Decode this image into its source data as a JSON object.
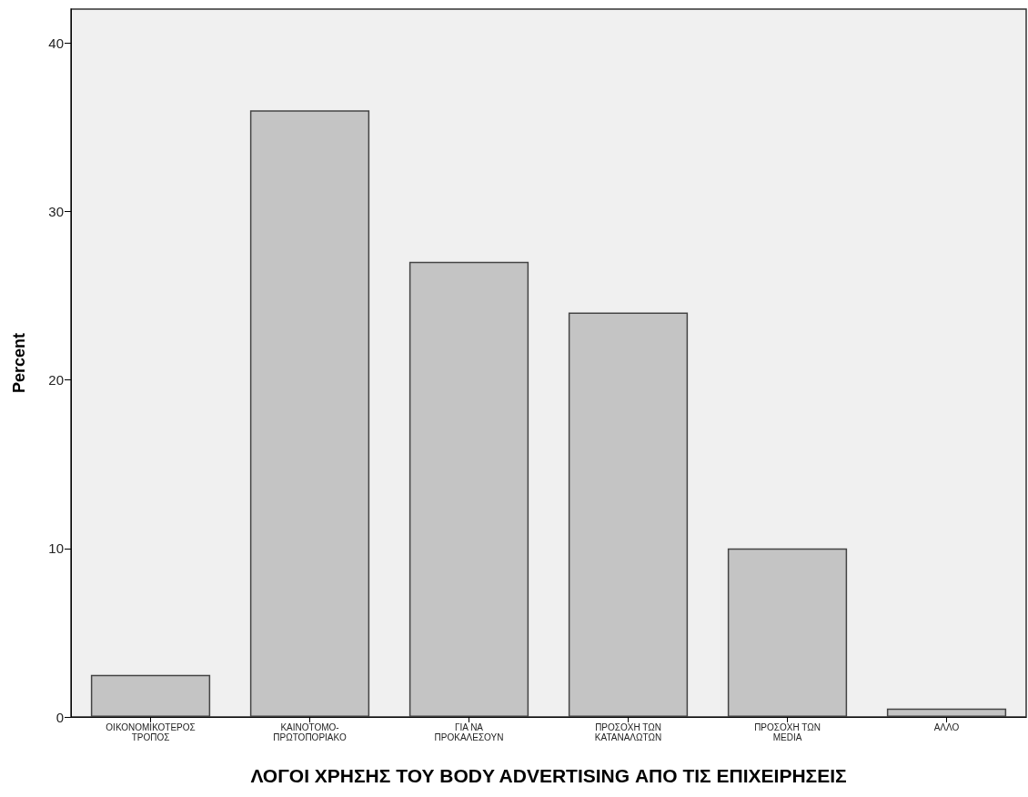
{
  "chart_data": {
    "type": "bar",
    "xlabel": "ΛΟΓΟΙ ΧΡΗΣΗΣ ΤΟΥ BODY ADVERTISING ΑΠΟ ΤΙΣ ΕΠΙΧΕΙΡΗΣΕΙΣ",
    "ylabel": "Percent",
    "categories": [
      "ΟΙΚΟΝΟΜΙΚΟΤΕΡΟΣ\nΤΡΟΠΟΣ",
      "ΚΑΙΝΟΤΟΜΟ-\nΠΡΩΤΟΠΟΡΙΑΚΟ",
      "ΓΙΑ ΝΑ\nΠΡΟΚΑΛΕΣΟΥΝ",
      "ΠΡΟΣΟΧΗ ΤΩΝ\nΚΑΤΑΝΑΛΩΤΩΝ",
      "ΠΡΟΣΟΧΗ ΤΩΝ\nMEDIA",
      "ΑΛΛΟ"
    ],
    "values": [
      2.5,
      36,
      27,
      24,
      10,
      0.5
    ],
    "color": "#c4c4c4",
    "ylim": [
      0,
      42
    ],
    "yticks": [
      0,
      10,
      20,
      30,
      40
    ],
    "grid": false
  }
}
